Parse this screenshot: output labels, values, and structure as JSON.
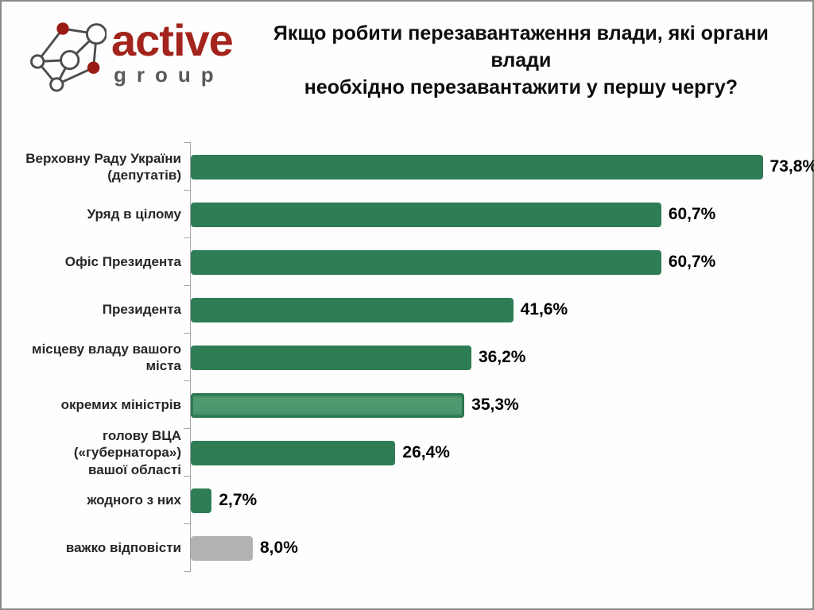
{
  "header": {
    "logo": {
      "brand": "active",
      "sub": "group",
      "brand_color": "#A3241C",
      "sub_color": "#595959",
      "node_red": "#9a1b13",
      "line_gray": "#4d4d4d"
    },
    "title_line1": "Якщо робити перезавантаження влади, які органи влади",
    "title_line2": "необхідно перезавантажити у першу чергу?"
  },
  "chart_data": {
    "type": "bar",
    "orientation": "horizontal",
    "title": "Якщо робити перезавантаження влади, які органи влади необхідно перезавантажити у першу чергу?",
    "unit": "%",
    "xlim": [
      0,
      100
    ],
    "grid": false,
    "legend": "none",
    "categories": [
      "Верховну Раду України (депутатів)",
      "Уряд в цілому",
      "Офіс Президента",
      "Президента",
      "місцеву владу вашого міста",
      "окремих міністрів",
      "голову ВЦА («губернатора») вашої області",
      "жодного з них",
      "важко відповісти"
    ],
    "values": [
      73.8,
      60.7,
      60.7,
      41.6,
      36.2,
      35.3,
      26.4,
      2.7,
      8.0
    ],
    "colors": {
      "bar_green": "#2E7D55",
      "bar_gray": "#B2B2B2",
      "axis": "#A6A6A6"
    },
    "rows": [
      {
        "label": "Верховну Раду України\n(депутатів)",
        "value": 73.8,
        "display": "73,8%",
        "style": "green"
      },
      {
        "label": "Уряд в цілому",
        "value": 60.7,
        "display": "60,7%",
        "style": "green"
      },
      {
        "label": "Офіс Президента",
        "value": 60.7,
        "display": "60,7%",
        "style": "green"
      },
      {
        "label": "Президента",
        "value": 41.6,
        "display": "41,6%",
        "style": "green"
      },
      {
        "label": "місцеву владу вашого міста",
        "value": 36.2,
        "display": "36,2%",
        "style": "green"
      },
      {
        "label": "окремих міністрів",
        "value": 35.3,
        "display": "35,3%",
        "style": "green highlight"
      },
      {
        "label": "голову ВЦА («губернатора»)\nвашої області",
        "value": 26.4,
        "display": "26,4%",
        "style": "green"
      },
      {
        "label": "жодного з них",
        "value": 2.7,
        "display": "2,7%",
        "style": "green"
      },
      {
        "label": "важко відповісти",
        "value": 8.0,
        "display": "8,0%",
        "style": "gray"
      }
    ]
  }
}
